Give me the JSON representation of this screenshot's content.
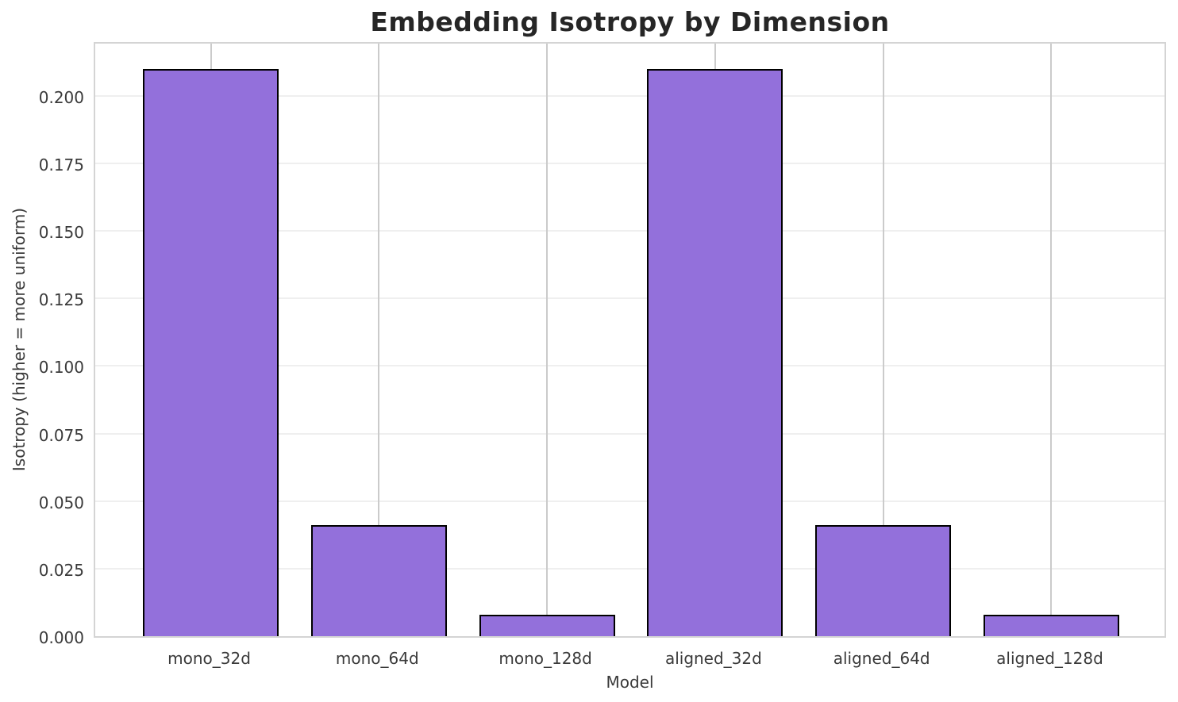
{
  "chart_data": {
    "type": "bar",
    "title": "Embedding Isotropy by Dimension",
    "xlabel": "Model",
    "ylabel": "Isotropy (higher = more uniform)",
    "categories": [
      "mono_32d",
      "mono_64d",
      "mono_128d",
      "aligned_32d",
      "aligned_64d",
      "aligned_128d"
    ],
    "values": [
      0.21,
      0.041,
      0.008,
      0.21,
      0.041,
      0.008
    ],
    "ylim": [
      0,
      0.2205
    ],
    "yticks": [
      0.0,
      0.025,
      0.05,
      0.075,
      0.1,
      0.125,
      0.15,
      0.175,
      0.2
    ],
    "ytick_decimals": 3,
    "grid": "both",
    "legend": "none",
    "colors": {
      "bar_fill": "#9370DB",
      "bar_edge": "#000000",
      "grid_horizontal": "#efefef",
      "grid_vertical": "#cbcbcb",
      "spine": "#d4d4d4",
      "title_text": "#262626",
      "tick_text": "#3a3a3a",
      "background": "#ffffff"
    }
  }
}
